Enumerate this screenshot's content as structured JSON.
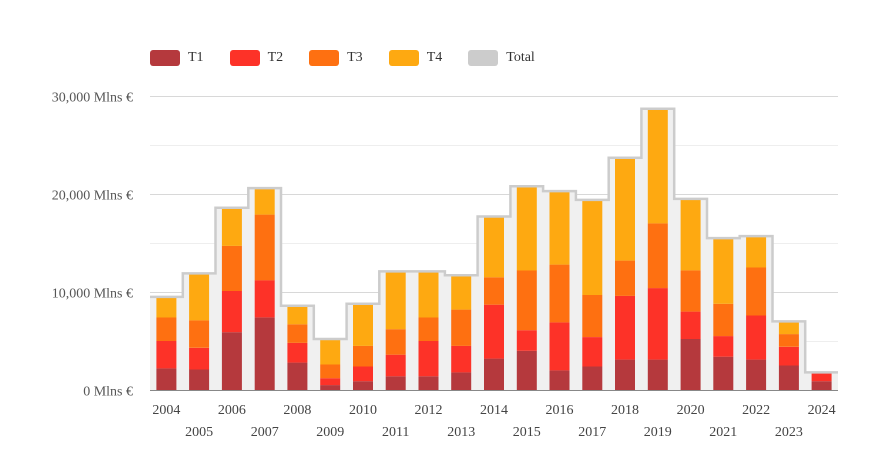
{
  "chart_data": {
    "type": "bar",
    "stacked": true,
    "categories": [
      "2004",
      "2005",
      "2006",
      "2007",
      "2008",
      "2009",
      "2010",
      "2011",
      "2012",
      "2013",
      "2014",
      "2015",
      "2016",
      "2017",
      "2018",
      "2019",
      "2020",
      "2021",
      "2022",
      "2023",
      "2024"
    ],
    "series": [
      {
        "name": "T1",
        "color": "#b5393d",
        "values": [
          2200,
          2100,
          5900,
          7400,
          2800,
          500,
          900,
          1400,
          1400,
          1800,
          3200,
          4000,
          2000,
          2400,
          3100,
          3100,
          5200,
          3400,
          3100,
          2500,
          900
        ]
      },
      {
        "name": "T2",
        "color": "#fd3228",
        "values": [
          2800,
          2200,
          4200,
          3800,
          2000,
          700,
          1500,
          2200,
          3600,
          2700,
          5500,
          2100,
          4900,
          3000,
          6500,
          7300,
          2800,
          2100,
          4500,
          1900,
          900
        ]
      },
      {
        "name": "T3",
        "color": "#fe7011",
        "values": [
          2400,
          2800,
          4600,
          6700,
          1900,
          1400,
          2100,
          2600,
          2400,
          3700,
          2800,
          6100,
          5900,
          4300,
          3600,
          6600,
          4200,
          3300,
          4900,
          1300,
          0
        ]
      },
      {
        "name": "T4",
        "color": "#fea911",
        "values": [
          2100,
          4800,
          3900,
          2700,
          1900,
          2600,
          4300,
          5900,
          4700,
          3500,
          6200,
          8600,
          7500,
          9700,
          10500,
          11600,
          7300,
          6700,
          3200,
          1300,
          0
        ]
      }
    ],
    "total": {
      "name": "Total",
      "color": "#cccccc",
      "values": [
        9500,
        11900,
        18600,
        20600,
        8600,
        5200,
        8800,
        12100,
        12100,
        11700,
        17700,
        20800,
        20300,
        19400,
        23700,
        28700,
        19500,
        15500,
        15700,
        7000,
        1800
      ]
    },
    "y_ticks": [
      {
        "value": 0,
        "label": "0 Mlns €"
      },
      {
        "value": 10000,
        "label": "10,000 Mlns €"
      },
      {
        "value": 20000,
        "label": "20,000 Mlns €"
      },
      {
        "value": 30000,
        "label": "30,000 Mlns €"
      }
    ],
    "ylim": [
      0,
      30000
    ],
    "legend_position": "top-left",
    "grid": true
  }
}
